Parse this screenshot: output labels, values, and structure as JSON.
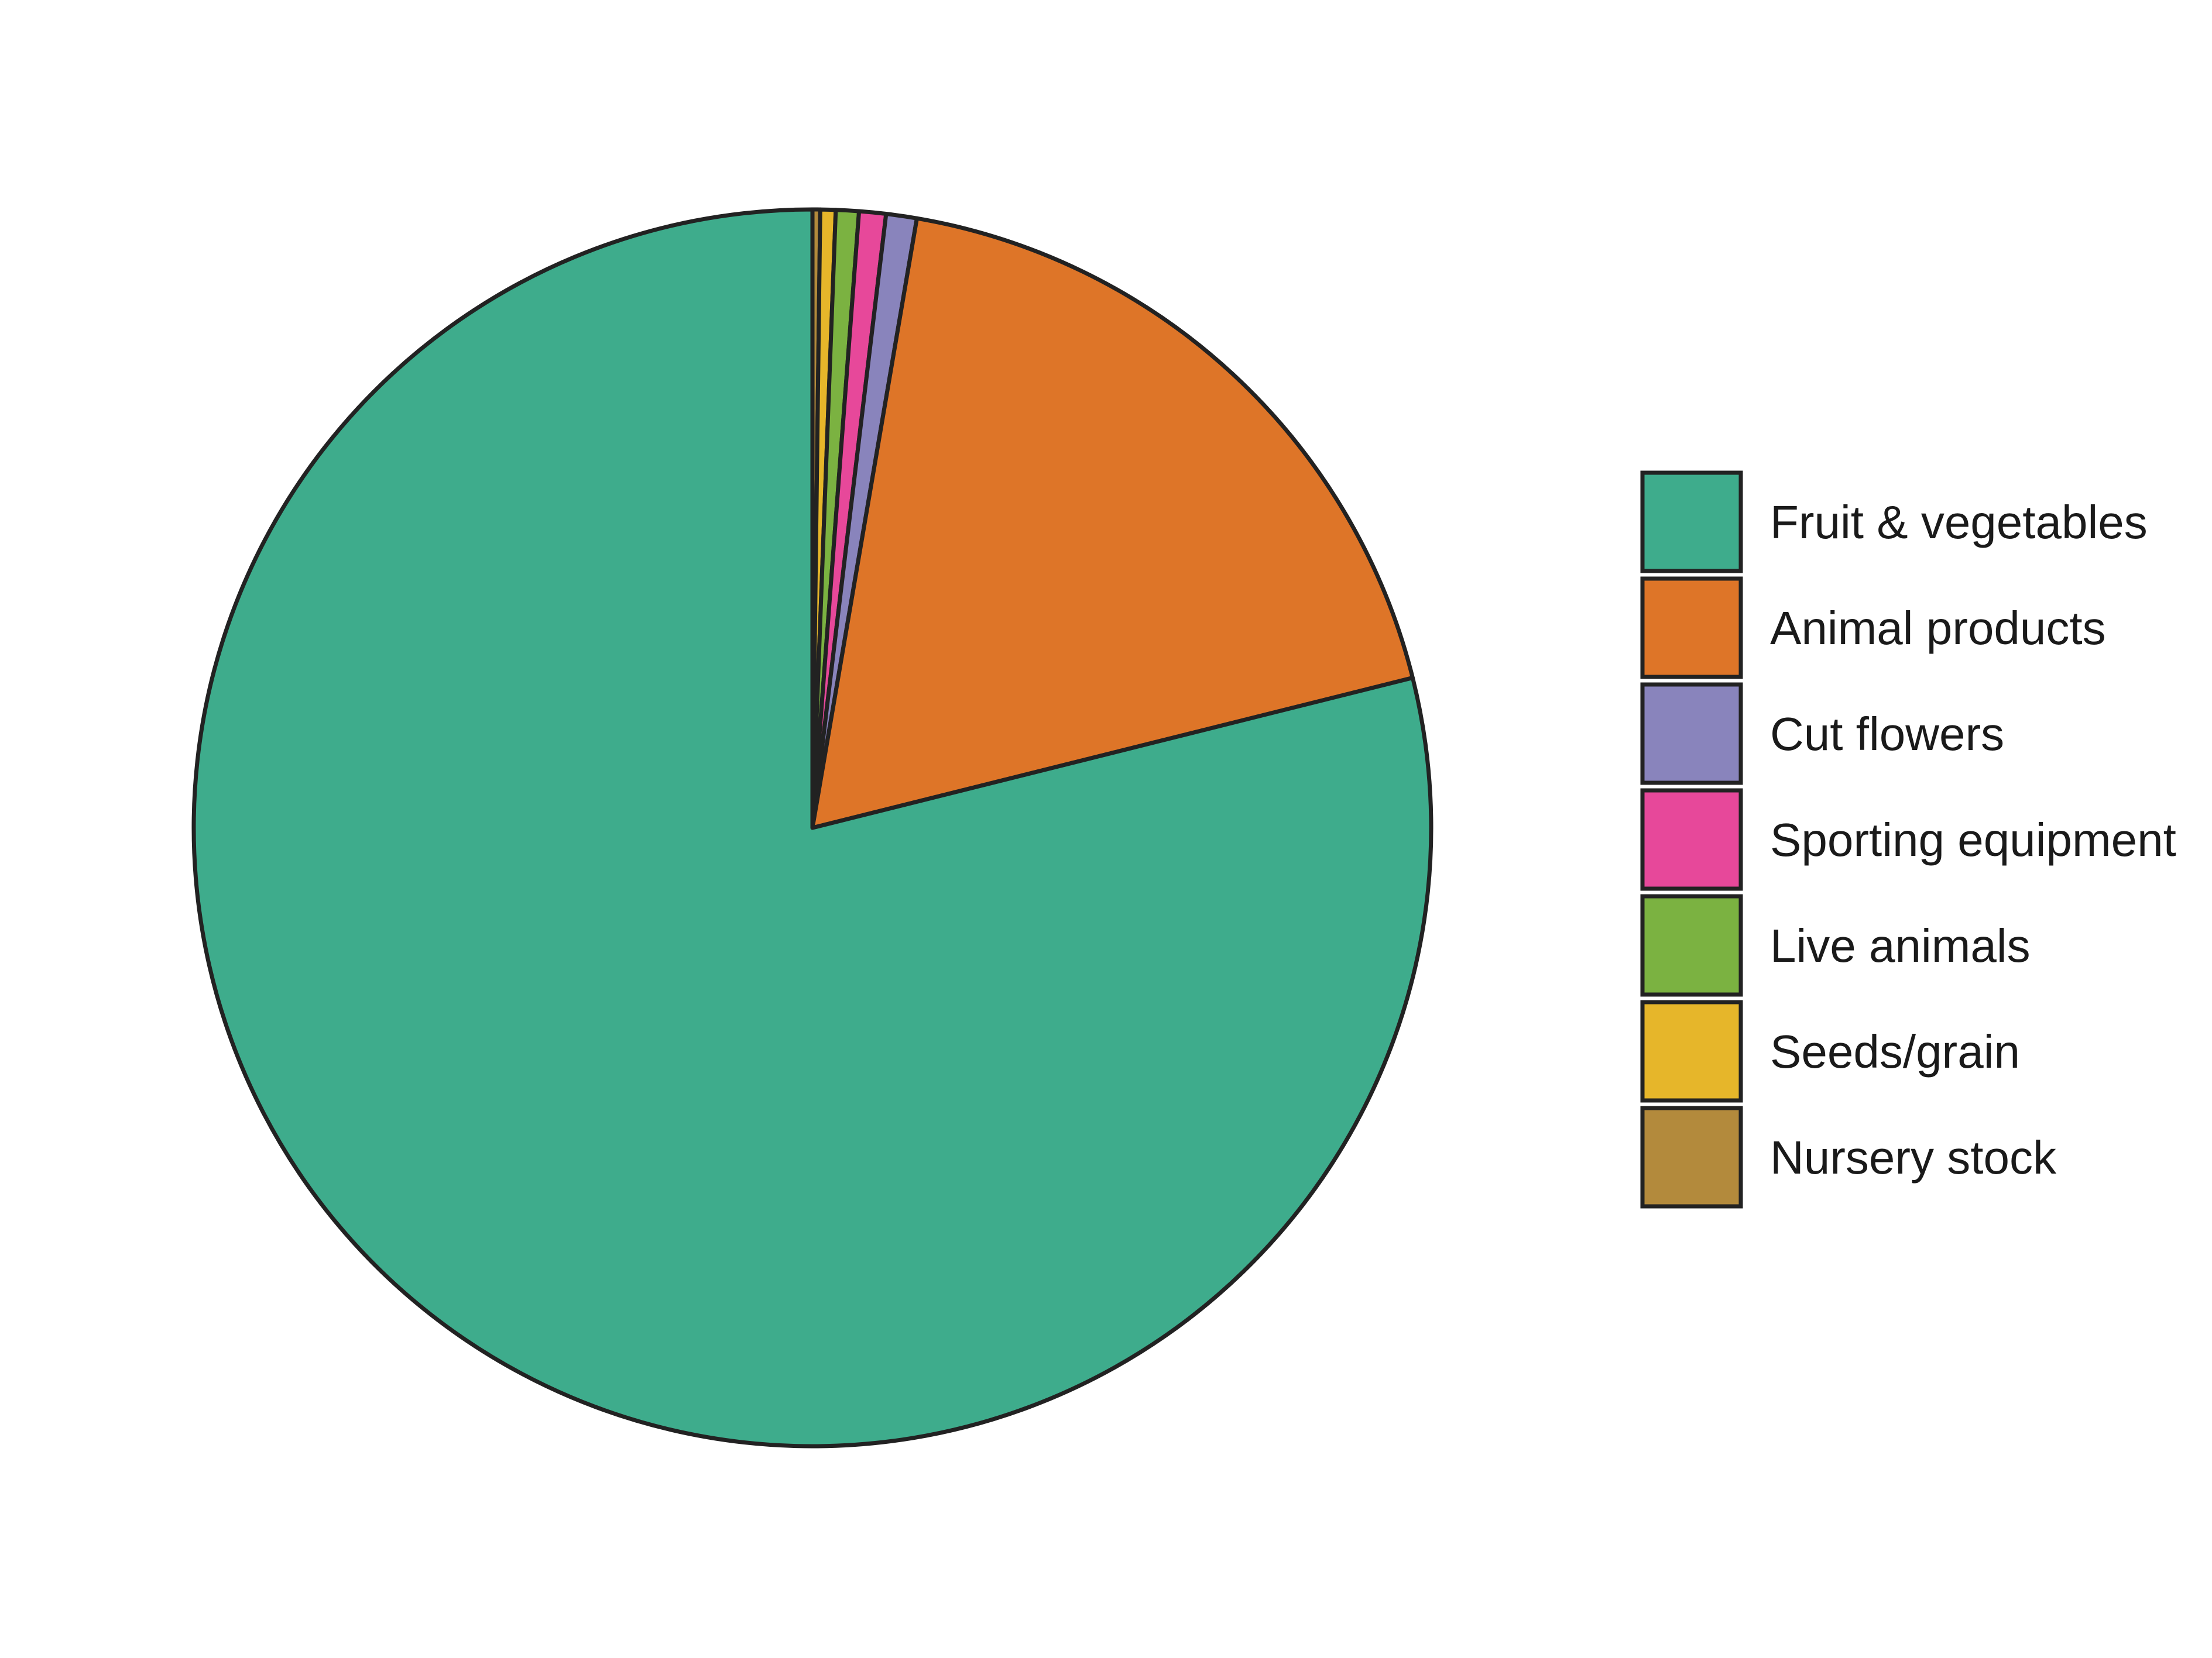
{
  "chart_data": {
    "type": "pie",
    "title": "",
    "start": "top",
    "direction": "clockwise",
    "legend_position": "right",
    "slices": [
      {
        "label": "Nursery stock",
        "value": 0.2,
        "color": "#B38A3C"
      },
      {
        "label": "Seeds/grain",
        "value": 0.4,
        "color": "#E6B62A"
      },
      {
        "label": "Live animals",
        "value": 0.6,
        "color": "#7BB241"
      },
      {
        "label": "Sporting equipment",
        "value": 0.7,
        "color": "#E7489A"
      },
      {
        "label": "Cut flowers",
        "value": 0.8,
        "color": "#8984BC"
      },
      {
        "label": "Animal products",
        "value": 18.4,
        "color": "#DE7528"
      },
      {
        "label": "Fruit & vegetables",
        "value": 78.9,
        "color": "#3EAC8C"
      }
    ],
    "legend": [
      {
        "label": "Fruit & vegetables",
        "color": "#3EAC8C"
      },
      {
        "label": "Animal products",
        "color": "#DE7528"
      },
      {
        "label": "Cut flowers",
        "color": "#8984BC"
      },
      {
        "label": "Sporting equipment",
        "color": "#E7489A"
      },
      {
        "label": "Live animals",
        "color": "#7BB241"
      },
      {
        "label": "Seeds/grain",
        "color": "#E6B62A"
      },
      {
        "label": "Nursery stock",
        "color": "#B38A3C"
      }
    ]
  }
}
